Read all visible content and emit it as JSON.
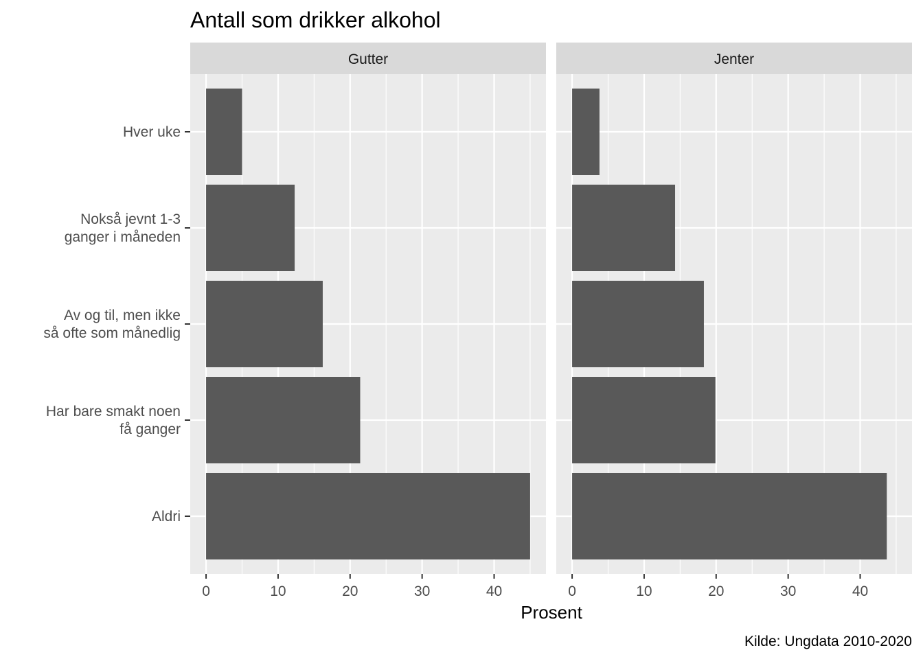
{
  "chart_data": {
    "type": "bar",
    "orientation": "horizontal",
    "title": "Antall som drikker alkohol",
    "xlabel": "Prosent",
    "ylabel": "",
    "caption": "Kilde: Ungdata 2010-2020",
    "xlim": [
      -2.2,
      47.2
    ],
    "x_ticks": [
      "0",
      "10",
      "20",
      "30",
      "40"
    ],
    "grid": true,
    "categories": [
      [
        "Hver uke"
      ],
      [
        "Nokså jevnt 1-3",
        "ganger i måneden"
      ],
      [
        "Av og til, men ikke",
        "så ofte som månedlig"
      ],
      [
        "Har bare smakt noen",
        "få ganger"
      ],
      [
        "Aldri"
      ]
    ],
    "facets": [
      {
        "name": "Gutter",
        "values": [
          5.0,
          12.3,
          16.2,
          21.4,
          45.0
        ]
      },
      {
        "name": "Jenter",
        "values": [
          3.8,
          14.3,
          18.3,
          19.9,
          43.7
        ]
      }
    ],
    "colors": {
      "bar": "#595959",
      "panel": "#ebebeb",
      "strip": "#d9d9d9",
      "grid": "#ffffff"
    }
  }
}
